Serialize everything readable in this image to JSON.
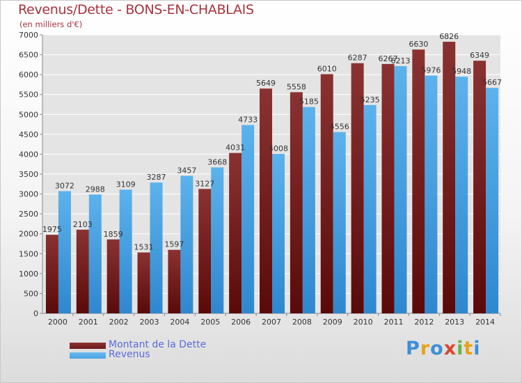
{
  "chart_data": {
    "type": "bar",
    "title": "Revenus/Dette - BONS-EN-CHABLAIS",
    "subtitle": "(en milliers d'€)",
    "categories": [
      "2000",
      "2001",
      "2002",
      "2003",
      "2004",
      "2005",
      "2006",
      "2007",
      "2008",
      "2009",
      "2010",
      "2011",
      "2012",
      "2013",
      "2014"
    ],
    "series": [
      {
        "name": "Montant de la Dette",
        "color": "#7a2424",
        "values": [
          1975,
          2103,
          1859,
          1531,
          1597,
          3127,
          4031,
          5649,
          5558,
          6010,
          6287,
          6267,
          6630,
          6826,
          6349
        ],
        "labels": [
          "1975",
          "2103",
          "1859",
          "1531",
          "1597",
          "3127",
          "4031",
          "5649",
          "5558",
          "6010",
          "6287",
          "6267",
          "6630",
          "6826",
          "6349"
        ]
      },
      {
        "name": "Revenus",
        "color": "#4aa3e2",
        "values": [
          3072,
          2988,
          3109,
          3287,
          3457,
          3668,
          4733,
          4008,
          5185,
          4556,
          5235,
          6213,
          5976,
          5948,
          5667
        ],
        "labels": [
          "3072",
          "2988",
          "3109",
          "3287",
          "3457",
          "3668",
          "4733",
          "4008",
          "5185",
          "4556",
          "5235",
          "6213",
          "5976",
          "5948",
          "5667"
        ]
      }
    ],
    "ylim": [
      0,
      7000
    ],
    "yticks": [
      "0",
      "500",
      "1000",
      "1500",
      "2000",
      "2500",
      "3000",
      "3500",
      "4000",
      "4500",
      "5000",
      "5500",
      "6000",
      "6500",
      "7000"
    ],
    "grid": true,
    "legend_position": "bottom-left"
  },
  "legend": {
    "debt_label": "Montant de la Dette",
    "revenue_label": "Revenus",
    "debt_color": "#6e1c1c",
    "revenue_color": "#4aa3e2"
  },
  "logo": {
    "text": "Proxiti",
    "letters": [
      {
        "char": "P",
        "color": "#3d8fd6"
      },
      {
        "char": "r",
        "color": "#e8a317"
      },
      {
        "char": "o",
        "color": "#3d8fd6"
      },
      {
        "char": "x",
        "color": "#d9452b"
      },
      {
        "char": "i",
        "color": "#66b548"
      },
      {
        "char": "t",
        "color": "#e8a317"
      },
      {
        "char": "i",
        "color": "#3d8fd6"
      }
    ]
  }
}
